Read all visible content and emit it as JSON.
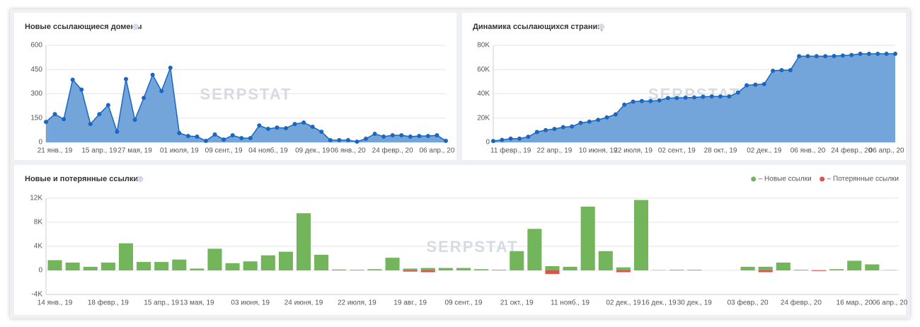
{
  "chart_data": [
    {
      "type": "area-line",
      "title": "Новые ссылающиеся домены",
      "watermark": "SERPSTAT",
      "color": "#1a67c0",
      "fill": "#6b9fd8",
      "categories": [
        null,
        "21 янв., 19",
        null,
        null,
        null,
        null,
        "15 апр., 19",
        null,
        null,
        null,
        "27 мая, 19",
        null,
        null,
        null,
        null,
        "01 июля, 19",
        null,
        null,
        null,
        null,
        "09 сент., 19",
        null,
        null,
        null,
        null,
        "04 нояб., 19",
        null,
        null,
        null,
        null,
        "09 дек., 19",
        null,
        null,
        null,
        "06 янв., 20",
        null,
        null,
        null,
        null,
        "24 февр., 20",
        null,
        null,
        null,
        null,
        "06 апр., 20",
        null
      ],
      "values": [
        126,
        174,
        143,
        387,
        326,
        113,
        174,
        230,
        65,
        391,
        139,
        274,
        417,
        317,
        461,
        57,
        39,
        35,
        9,
        48,
        17,
        43,
        26,
        26,
        104,
        83,
        91,
        87,
        113,
        122,
        96,
        65,
        13,
        13,
        13,
        4,
        22,
        52,
        35,
        43,
        43,
        35,
        39,
        39,
        43,
        9
      ],
      "ylim": [
        0,
        600
      ],
      "yticks": [
        0,
        150,
        300,
        450,
        600
      ],
      "grid": true
    },
    {
      "type": "area-line",
      "title": "Динамика ссылающихся страниц",
      "watermark": "SERPSTAT",
      "color": "#1a67c0",
      "fill": "#6b9fd8",
      "categories": [
        null,
        null,
        "11 февр., 19",
        null,
        null,
        null,
        null,
        "22 апр., 19",
        null,
        null,
        null,
        null,
        "10 июня, 19",
        null,
        null,
        null,
        "22 июля, 19",
        null,
        null,
        null,
        null,
        "02 сент., 19",
        null,
        null,
        null,
        null,
        "28 окт., 19",
        null,
        null,
        null,
        null,
        "02 дек., 19",
        null,
        null,
        null,
        null,
        "06 янв., 20",
        null,
        null,
        null,
        null,
        "24 февр., 20",
        null,
        null,
        null,
        "06 апр., 20",
        null
      ],
      "values": [
        1000,
        2000,
        3000,
        3000,
        4500,
        8500,
        10000,
        11000,
        12500,
        13000,
        16000,
        17000,
        18500,
        20500,
        23000,
        31000,
        33500,
        34000,
        34000,
        34500,
        36500,
        36500,
        36800,
        37000,
        37500,
        37800,
        37800,
        37800,
        41000,
        47000,
        47500,
        48000,
        59000,
        59500,
        59500,
        71000,
        71000,
        71000,
        71000,
        71200,
        71500,
        72000,
        73000,
        73000,
        73000,
        73000,
        73000
      ],
      "ylim": [
        0,
        80000
      ],
      "yticks": [
        0,
        {
          "value": 20000,
          "label": "20K"
        },
        {
          "value": 40000,
          "label": "40K"
        },
        {
          "value": 60000,
          "label": "60K"
        },
        {
          "value": 80000,
          "label": "80K"
        }
      ],
      "grid": true
    },
    {
      "type": "bar",
      "title": "Новые и потерянные ссылки",
      "watermark": "SERPSTAT",
      "categories": [
        "14 янв., 19",
        null,
        null,
        "18 февр., 19",
        null,
        null,
        "15 апр., 19",
        null,
        "13 мая, 19",
        null,
        null,
        "03 июня, 19",
        null,
        null,
        "24 июня, 19",
        null,
        null,
        "22 июля, 19",
        null,
        null,
        "19 авг., 19",
        null,
        null,
        "09 сент., 19",
        null,
        null,
        "21 окт., 19",
        null,
        null,
        "11 нояб., 19",
        null,
        null,
        "02 дек., 19",
        null,
        "16 дек., 19",
        null,
        "30 дек., 19",
        null,
        null,
        "03 февр., 20",
        null,
        null,
        "24 февр., 20",
        null,
        null,
        "16 мар., 20",
        null,
        "06 апр., 20"
      ],
      "series": [
        {
          "name": "– Новые ссылки",
          "color": "#72b55a",
          "values": [
            1700,
            1300,
            600,
            1300,
            4500,
            1400,
            1400,
            1800,
            300,
            3600,
            1200,
            1500,
            2500,
            3100,
            9500,
            2600,
            150,
            100,
            200,
            2100,
            300,
            400,
            400,
            400,
            200,
            100,
            3200,
            6900,
            700,
            600,
            10600,
            3200,
            500,
            11700,
            50,
            100,
            100,
            0,
            0,
            600,
            600,
            1300,
            100,
            50,
            200,
            1600,
            1000,
            50
          ]
        },
        {
          "name": "– Потерянные ссылки",
          "color": "#d9534f",
          "values": [
            0,
            0,
            0,
            0,
            0,
            0,
            0,
            0,
            0,
            0,
            0,
            0,
            0,
            0,
            0,
            0,
            0,
            0,
            0,
            0,
            -200,
            -300,
            0,
            0,
            0,
            0,
            0,
            0,
            -600,
            0,
            0,
            0,
            -300,
            0,
            0,
            0,
            0,
            0,
            0,
            0,
            -300,
            0,
            0,
            -100,
            0,
            0,
            0,
            0
          ]
        }
      ],
      "ylim": [
        -4000,
        12000
      ],
      "yticks": [
        {
          "value": -4000,
          "label": "-4K"
        },
        0,
        {
          "value": 4000,
          "label": "4K"
        },
        {
          "value": 8000,
          "label": "8K"
        },
        {
          "value": 12000,
          "label": "12K"
        }
      ],
      "grid": true,
      "legend": "top-right"
    }
  ]
}
